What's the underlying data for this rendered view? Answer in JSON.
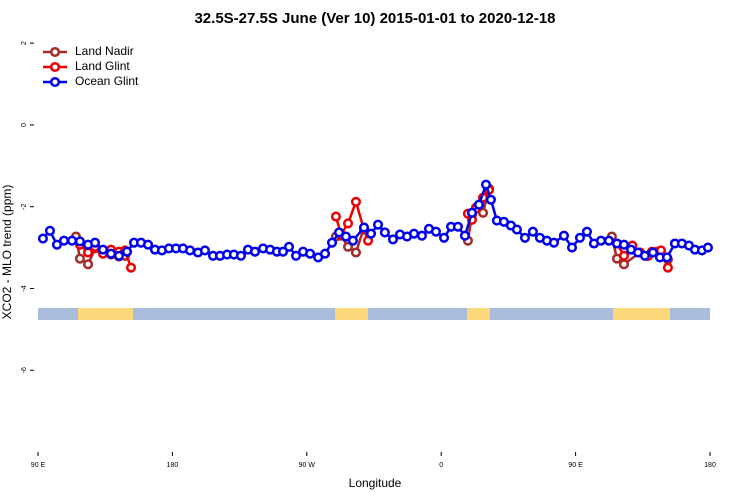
{
  "chart_data": {
    "type": "line",
    "title": "32.5S-27.5S June (Ver 10)   2015-01-01 to 2020-12-18",
    "x_label": "Longitude",
    "y_label": "XCO2 - MLO trend (ppm)",
    "xlim": [
      90,
      540
    ],
    "xticks": [
      {
        "value": 90,
        "label": "90 E"
      },
      {
        "value": 180,
        "label": "180"
      },
      {
        "value": 270,
        "label": "90 W"
      },
      {
        "value": 360,
        "label": "0"
      },
      {
        "value": 450,
        "label": "90 E"
      },
      {
        "value": 540,
        "label": "180"
      }
    ],
    "ylim": [
      -8,
      2.2
    ],
    "yticks": [
      2,
      0,
      -2,
      -4,
      -6
    ],
    "legend": "top-left",
    "series": [
      {
        "name": "Land Nadir",
        "color": "#a52a2a",
        "x": [
          115.4,
          118.1,
          123.5,
          128.2,
          133.5,
          138.9,
          144.2,
          148.3,
          null,
          289.5,
          292.9,
          297.6,
          302.9,
          308.3,
          null,
          377.9,
          380.6,
          383.3,
          388.0,
          392.0,
          null,
          474.3,
          477.7,
          482.4,
          493.1,
          498.5,
          504.4,
          511.8
        ],
        "values": [
          -2.73,
          -3.27,
          -3.41,
          -3.02,
          -3.12,
          -3.17,
          -3.22,
          -3.2,
          null,
          -2.73,
          -2.71,
          -2.98,
          -3.12,
          -2.51,
          null,
          -2.83,
          -2.2,
          -2.02,
          -2.15,
          -1.56,
          null,
          -2.73,
          -3.27,
          -3.41,
          -3.12,
          -3.2,
          -3.1,
          -3.29
        ]
      },
      {
        "name": "Land Glint",
        "color": "#ee0000",
        "x": [
          118.1,
          123.5,
          128.2,
          133.5,
          138.9,
          144.2,
          148.3,
          152.3,
          null,
          289.5,
          292.9,
          297.6,
          302.9,
          308.3,
          311.0,
          null,
          377.9,
          380.6,
          383.3,
          388.0,
          392.0,
          null,
          477.7,
          482.4,
          488.0,
          493.1,
          498.5,
          501.1,
          507.2,
          511.8
        ],
        "values": [
          -2.93,
          -3.12,
          -2.98,
          -3.15,
          -3.05,
          -3.1,
          -3.07,
          -3.49,
          null,
          -2.24,
          -2.68,
          -2.41,
          -1.88,
          -2.56,
          -2.83,
          null,
          -2.17,
          -2.32,
          -2.05,
          -1.78,
          -1.59,
          null,
          -2.9,
          -3.2,
          -2.95,
          -3.12,
          -3.2,
          -3.1,
          -3.07,
          -3.49
        ]
      },
      {
        "name": "Ocean Glint",
        "color": "#0000ee",
        "x": [
          93.3,
          98.0,
          102.7,
          107.4,
          112.8,
          118.1,
          123.5,
          128.2,
          133.5,
          138.9,
          144.2,
          149.6,
          154.3,
          159.0,
          163.7,
          168.3,
          173.0,
          177.7,
          182.4,
          187.1,
          191.8,
          197.1,
          201.8,
          207.2,
          211.9,
          216.6,
          221.2,
          225.9,
          230.6,
          235.3,
          240.7,
          245.4,
          250.0,
          254.1,
          258.1,
          262.8,
          267.5,
          272.2,
          277.6,
          282.2,
          286.9,
          291.6,
          296.2,
          300.9,
          308.3,
          313.0,
          317.7,
          322.3,
          327.7,
          332.4,
          337.1,
          341.8,
          347.1,
          351.8,
          356.5,
          361.9,
          366.6,
          371.2,
          375.9,
          380.6,
          385.3,
          390.0,
          393.3,
          397.3,
          402.0,
          406.7,
          410.7,
          416.1,
          421.4,
          426.1,
          430.8,
          435.5,
          442.2,
          447.6,
          452.9,
          457.6,
          462.3,
          467.0,
          472.3,
          477.7,
          482.4,
          487.1,
          491.8,
          496.4,
          501.8,
          506.5,
          511.2,
          516.5,
          521.2,
          525.9,
          529.9,
          534.6,
          538.6
        ],
        "values": [
          -2.78,
          -2.59,
          -2.93,
          -2.83,
          -2.83,
          -2.85,
          -2.93,
          -2.88,
          -3.05,
          -3.15,
          -3.2,
          -3.1,
          -2.88,
          -2.88,
          -2.93,
          -3.05,
          -3.07,
          -3.02,
          -3.02,
          -3.02,
          -3.07,
          -3.12,
          -3.07,
          -3.2,
          -3.2,
          -3.17,
          -3.17,
          -3.2,
          -3.05,
          -3.1,
          -3.02,
          -3.05,
          -3.1,
          -3.1,
          -2.98,
          -3.2,
          -3.1,
          -3.15,
          -3.24,
          -3.15,
          -2.88,
          -2.63,
          -2.73,
          -2.83,
          -2.51,
          -2.66,
          -2.44,
          -2.63,
          -2.8,
          -2.68,
          -2.73,
          -2.66,
          -2.71,
          -2.54,
          -2.61,
          -2.76,
          -2.49,
          -2.49,
          -2.71,
          -2.15,
          -1.95,
          -1.46,
          -1.83,
          -2.34,
          -2.37,
          -2.46,
          -2.56,
          -2.76,
          -2.61,
          -2.76,
          -2.83,
          -2.88,
          -2.71,
          -3.0,
          -2.76,
          -2.61,
          -2.9,
          -2.83,
          -2.83,
          -2.9,
          -2.93,
          -3.05,
          -3.12,
          -3.2,
          -3.12,
          -3.24,
          -3.24,
          -2.9,
          -2.9,
          -2.95,
          -3.05,
          -3.07,
          -3.0
        ]
      }
    ]
  }
}
